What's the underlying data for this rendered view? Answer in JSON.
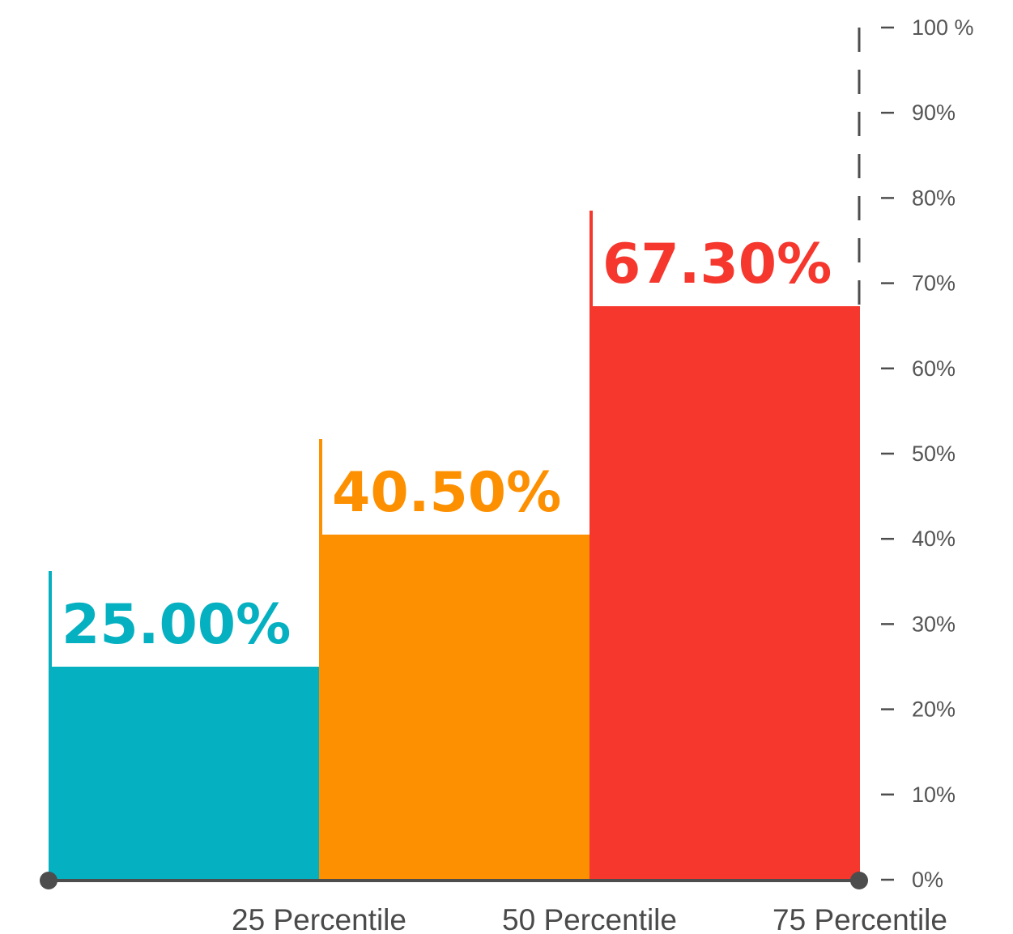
{
  "chart_data": {
    "type": "bar",
    "categories": [
      "25 Percentile",
      "50 Percentile",
      "75 Percentile"
    ],
    "values": [
      25.0,
      40.5,
      67.3
    ],
    "value_labels": [
      "25.00%",
      "40.50%",
      "67.30%"
    ],
    "colors": [
      "#05b0c1",
      "#fd9000",
      "#f5372d"
    ],
    "axis_color": "#4d4d4d",
    "ylim": [
      0,
      100
    ],
    "y_axis_position": "right",
    "y_ticks": [
      0,
      10,
      20,
      30,
      40,
      50,
      60,
      70,
      80,
      90,
      100
    ],
    "y_tick_labels": [
      "0%",
      "10%",
      "20%",
      "30%",
      "40%",
      "50%",
      "60%",
      "70%",
      "80%",
      "90%",
      "100 %"
    ],
    "grid": false,
    "title": "",
    "xlabel": "",
    "ylabel": ""
  }
}
